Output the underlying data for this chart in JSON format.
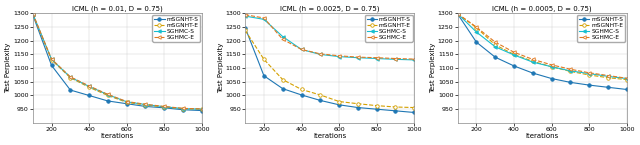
{
  "panels": [
    {
      "title": "ICML (h = 0.01, D = 0.75)",
      "xlim": [
        100,
        1000
      ],
      "ylim": [
        900,
        1300
      ],
      "yticks": [
        950,
        1000,
        1050,
        1100,
        1150,
        1200,
        1250,
        1300
      ],
      "xticks": [
        200,
        400,
        600,
        800,
        1000
      ],
      "series": [
        {
          "label": "mSGNHT-S",
          "color": "#1f77b4",
          "linestyle": "-",
          "marker": "o",
          "markerfacecolor": "#1f77b4",
          "x": [
            100,
            200,
            300,
            400,
            500,
            600,
            700,
            800,
            900,
            1000
          ],
          "y": [
            1295,
            1110,
            1020,
            1000,
            980,
            970,
            960,
            955,
            948,
            945
          ]
        },
        {
          "label": "mSGNHT-E",
          "color": "#d4a000",
          "linestyle": "--",
          "marker": "o",
          "markerfacecolor": "white",
          "x": [
            100,
            200,
            300,
            400,
            500,
            600,
            700,
            800,
            900,
            1000
          ],
          "y": [
            1298,
            1130,
            1065,
            1030,
            1000,
            975,
            965,
            958,
            952,
            950
          ]
        },
        {
          "label": "SGHMC-S",
          "color": "#17becf",
          "linestyle": "-",
          "marker": "<",
          "markerfacecolor": "#17becf",
          "x": [
            100,
            200,
            300,
            400,
            500,
            600,
            700,
            800,
            900,
            1000
          ],
          "y": [
            1299,
            1132,
            1067,
            1033,
            1003,
            977,
            967,
            959,
            952,
            950
          ]
        },
        {
          "label": "SGHMC-E",
          "color": "#e07820",
          "linestyle": "--",
          "marker": "<",
          "markerfacecolor": "white",
          "x": [
            100,
            200,
            300,
            400,
            500,
            600,
            700,
            800,
            900,
            1000
          ],
          "y": [
            1299,
            1133,
            1068,
            1035,
            1004,
            978,
            968,
            960,
            953,
            951
          ]
        }
      ]
    },
    {
      "title": "ICML (h = 0.0025, D = 0.75)",
      "xlim": [
        100,
        1000
      ],
      "ylim": [
        900,
        1300
      ],
      "yticks": [
        950,
        1000,
        1050,
        1100,
        1150,
        1200,
        1250,
        1300
      ],
      "xticks": [
        200,
        400,
        600,
        800,
        1000
      ],
      "series": [
        {
          "label": "mSGNHT-S",
          "color": "#1f77b4",
          "linestyle": "-",
          "marker": "o",
          "markerfacecolor": "#1f77b4",
          "x": [
            100,
            200,
            300,
            400,
            500,
            600,
            700,
            800,
            900,
            1000
          ],
          "y": [
            1248,
            1072,
            1025,
            1002,
            982,
            966,
            956,
            950,
            944,
            938
          ]
        },
        {
          "label": "mSGNHT-E",
          "color": "#d4a000",
          "linestyle": "--",
          "marker": "o",
          "markerfacecolor": "white",
          "x": [
            100,
            200,
            300,
            400,
            500,
            600,
            700,
            800,
            900,
            1000
          ],
          "y": [
            1238,
            1132,
            1058,
            1022,
            1002,
            978,
            970,
            963,
            958,
            956
          ]
        },
        {
          "label": "SGHMC-S",
          "color": "#17becf",
          "linestyle": "-",
          "marker": "<",
          "markerfacecolor": "#17becf",
          "x": [
            100,
            200,
            300,
            400,
            500,
            600,
            700,
            800,
            900,
            1000
          ],
          "y": [
            1290,
            1278,
            1215,
            1168,
            1150,
            1142,
            1138,
            1135,
            1132,
            1130
          ]
        },
        {
          "label": "SGHMC-E",
          "color": "#e07820",
          "linestyle": "--",
          "marker": "<",
          "markerfacecolor": "white",
          "x": [
            100,
            200,
            300,
            400,
            500,
            600,
            700,
            800,
            900,
            1000
          ],
          "y": [
            1295,
            1283,
            1205,
            1168,
            1152,
            1145,
            1140,
            1138,
            1135,
            1133
          ]
        }
      ]
    },
    {
      "title": "ICML (h = 0.0005, D = 0.75)",
      "xlim": [
        100,
        1000
      ],
      "ylim": [
        900,
        1300
      ],
      "yticks": [
        950,
        1000,
        1050,
        1100,
        1150,
        1200,
        1250,
        1300
      ],
      "xticks": [
        200,
        400,
        600,
        800,
        1000
      ],
      "series": [
        {
          "label": "mSGNHT-S",
          "color": "#1f77b4",
          "linestyle": "-",
          "marker": "o",
          "markerfacecolor": "#1f77b4",
          "x": [
            100,
            200,
            300,
            400,
            500,
            600,
            700,
            800,
            900,
            1000
          ],
          "y": [
            1298,
            1195,
            1140,
            1108,
            1082,
            1062,
            1048,
            1038,
            1030,
            1022
          ]
        },
        {
          "label": "mSGNHT-E",
          "color": "#d4a000",
          "linestyle": "--",
          "marker": "o",
          "markerfacecolor": "white",
          "x": [
            100,
            200,
            300,
            400,
            500,
            600,
            700,
            800,
            900,
            1000
          ],
          "y": [
            1298,
            1248,
            1185,
            1150,
            1125,
            1105,
            1088,
            1075,
            1065,
            1058
          ]
        },
        {
          "label": "SGHMC-S",
          "color": "#17becf",
          "linestyle": "-",
          "marker": "<",
          "markerfacecolor": "#17becf",
          "x": [
            100,
            200,
            300,
            400,
            500,
            600,
            700,
            800,
            900,
            1000
          ],
          "y": [
            1299,
            1232,
            1178,
            1148,
            1122,
            1105,
            1090,
            1080,
            1070,
            1062
          ]
        },
        {
          "label": "SGHMC-E",
          "color": "#e07820",
          "linestyle": "--",
          "marker": "<",
          "markerfacecolor": "white",
          "x": [
            100,
            200,
            300,
            400,
            500,
            600,
            700,
            800,
            900,
            1000
          ],
          "y": [
            1299,
            1250,
            1195,
            1158,
            1132,
            1112,
            1096,
            1083,
            1073,
            1063
          ]
        }
      ]
    }
  ],
  "xlabel": "Iterations",
  "ylabel": "Test Perplexity",
  "fig_width": 6.4,
  "fig_height": 1.45,
  "dpi": 100
}
